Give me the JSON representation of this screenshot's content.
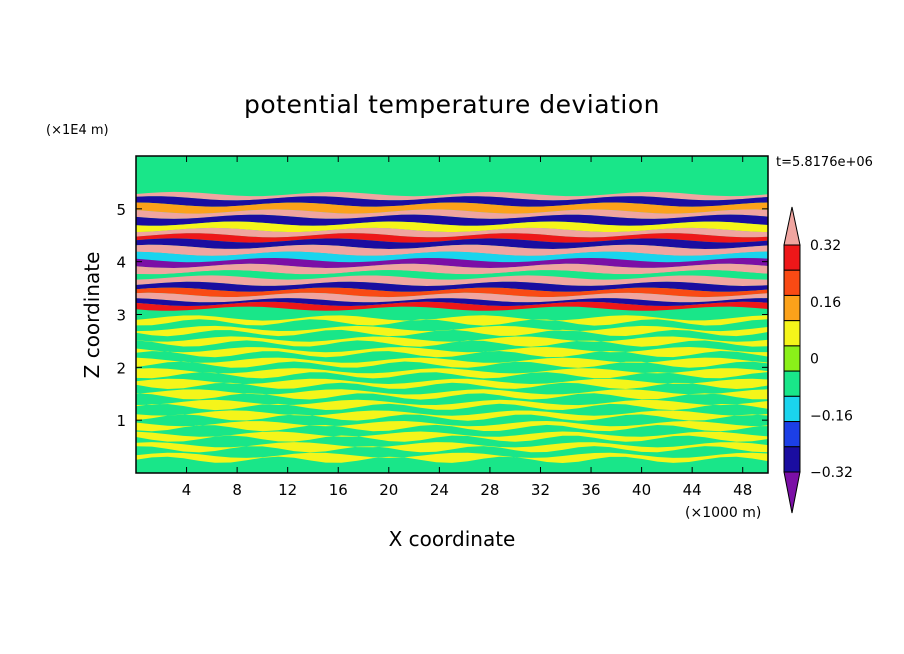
{
  "chart_data": {
    "type": "heatmap",
    "title": "potential temperature deviation",
    "xlabel": "X coordinate",
    "ylabel": "Z coordinate",
    "x_unit": "(×1000 m)",
    "y_unit": "(×1E4 m)",
    "time_label": "t=5.8176e+06",
    "xlim": [
      0,
      50
    ],
    "ylim": [
      0,
      6
    ],
    "x_ticks": [
      4,
      8,
      12,
      16,
      20,
      24,
      28,
      32,
      36,
      40,
      44,
      48
    ],
    "y_ticks": [
      1,
      2,
      3,
      4,
      5
    ],
    "colorbar": {
      "levels": [
        -0.4,
        -0.32,
        -0.24,
        -0.16,
        -0.08,
        0,
        0.08,
        0.16,
        0.24,
        0.32,
        0.4
      ],
      "labels": [
        "0.32",
        "0.16",
        "0",
        "−0.16",
        "−0.32"
      ],
      "label_values": [
        0.32,
        0.16,
        0,
        -0.16,
        -0.32
      ],
      "colors": [
        "#7b0fa6",
        "#1a0da0",
        "#1c3fe6",
        "#1ad4ee",
        "#19e689",
        "#8af019",
        "#f5f51a",
        "#fca21a",
        "#f94a14",
        "#ee1719",
        "#f0a5a0"
      ],
      "extend": "both"
    },
    "bands": [
      {
        "z": 5.28,
        "value": 0.44
      },
      {
        "z": 5.2,
        "value": -0.36
      },
      {
        "z": 5.08,
        "value": 0.1
      },
      {
        "z": 4.95,
        "value": 0.44
      },
      {
        "z": 4.85,
        "value": -0.36
      },
      {
        "z": 4.72,
        "value": 0.0
      },
      {
        "z": 4.6,
        "value": 0.44
      },
      {
        "z": 4.5,
        "value": 0.28
      },
      {
        "z": 4.4,
        "value": -0.36
      },
      {
        "z": 4.28,
        "value": 0.44
      },
      {
        "z": 4.15,
        "value": -0.2
      },
      {
        "z": 4.03,
        "value": -0.44
      },
      {
        "z": 3.92,
        "value": 0.36
      },
      {
        "z": 3.8,
        "value": -0.12
      },
      {
        "z": 3.7,
        "value": 0.44
      },
      {
        "z": 3.58,
        "value": -0.36
      },
      {
        "z": 3.47,
        "value": 0.2
      },
      {
        "z": 3.37,
        "value": 0.44
      },
      {
        "z": 3.27,
        "value": -0.36
      },
      {
        "z": 3.2,
        "value": 0.28
      }
    ],
    "lower_layer_value": 0.05,
    "background_value": 0.0
  }
}
